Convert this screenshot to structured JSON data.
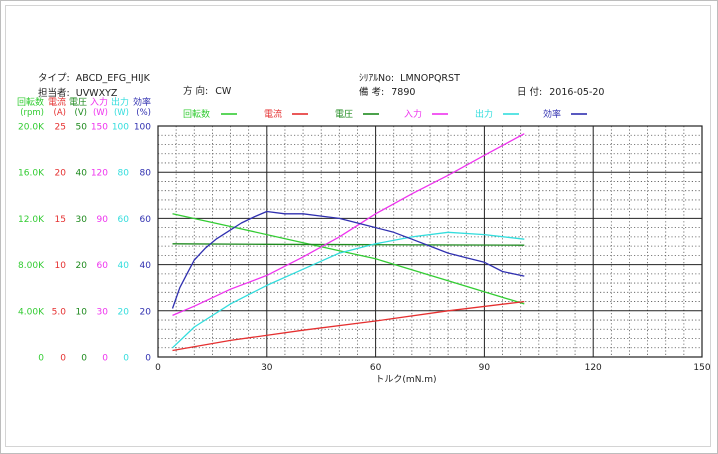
{
  "header": {
    "type_label": "タイプ:",
    "type_value": "ABCD_EFG_HIJK",
    "person_label": "担当者:",
    "person_value": "UVWXYZ",
    "direction_label": "方 向:",
    "direction_value": "CW",
    "serial_label": "ｼﾘｱﾙNo:",
    "serial_value": "LMNOPQRST",
    "remark_label": "備 考:",
    "remark_value": "7890",
    "date_label": "日 付:",
    "date_value": "2016-05-20"
  },
  "chart_data": {
    "type": "line",
    "xlabel": "トルク(mN.m)",
    "xlim": [
      0,
      150
    ],
    "x_ticks": [
      "0",
      "30",
      "60",
      "90",
      "120",
      "150"
    ],
    "grid": true,
    "axes": [
      {
        "name": "回転数",
        "unit": "(rpm)",
        "color": "#33cc33",
        "ticks": [
          "0",
          "4.00K",
          "8.00K",
          "12.0K",
          "16.0K",
          "20.0K"
        ]
      },
      {
        "name": "電流",
        "unit": "(A)",
        "color": "#e53030",
        "ticks": [
          "0",
          "5.0",
          "10",
          "15",
          "20",
          "25"
        ]
      },
      {
        "name": "電圧",
        "unit": "(V)",
        "color": "#1e8a1e",
        "ticks": [
          "0",
          "10",
          "20",
          "30",
          "40",
          "50"
        ]
      },
      {
        "name": "入力",
        "unit": "(W)",
        "color": "#ee33ee",
        "ticks": [
          "0",
          "30",
          "60",
          "90",
          "120",
          "150"
        ]
      },
      {
        "name": "出力",
        "unit": "(W)",
        "color": "#33dddd",
        "ticks": [
          "0",
          "20",
          "40",
          "60",
          "80",
          "100"
        ]
      },
      {
        "name": "効率",
        "unit": "(%)",
        "color": "#3030b0",
        "ticks": [
          "0",
          "20",
          "40",
          "60",
          "80",
          "100"
        ]
      }
    ],
    "legend": [
      {
        "name": "回転数",
        "color": "#33cc33"
      },
      {
        "name": "電流",
        "color": "#e53030"
      },
      {
        "name": "電圧",
        "color": "#1e8a1e"
      },
      {
        "name": "入力",
        "color": "#ee33ee"
      },
      {
        "name": "出力",
        "color": "#33dddd"
      },
      {
        "name": "効率",
        "color": "#3030b0"
      }
    ],
    "series": [
      {
        "name": "回転数",
        "color": "#33cc33",
        "scale_max": 20000,
        "points": [
          [
            4,
            12400
          ],
          [
            20,
            11300
          ],
          [
            40,
            9900
          ],
          [
            60,
            8500
          ],
          [
            80,
            6600
          ],
          [
            101,
            4600
          ]
        ]
      },
      {
        "name": "電流",
        "color": "#e53030",
        "scale_max": 25,
        "points": [
          [
            4,
            0.7
          ],
          [
            20,
            1.8
          ],
          [
            40,
            2.9
          ],
          [
            60,
            3.9
          ],
          [
            80,
            5.0
          ],
          [
            101,
            6.0
          ]
        ]
      },
      {
        "name": "電圧",
        "color": "#1e8a1e",
        "scale_max": 50,
        "points": [
          [
            4,
            24.5
          ],
          [
            30,
            24.4
          ],
          [
            60,
            24.3
          ],
          [
            101,
            24.2
          ]
        ]
      },
      {
        "name": "入力",
        "color": "#ee33ee",
        "scale_max": 150,
        "points": [
          [
            4,
            27
          ],
          [
            10,
            33
          ],
          [
            20,
            44
          ],
          [
            30,
            53
          ],
          [
            40,
            65
          ],
          [
            50,
            78
          ],
          [
            60,
            93
          ],
          [
            70,
            106
          ],
          [
            80,
            118
          ],
          [
            90,
            131
          ],
          [
            101,
            145
          ]
        ]
      },
      {
        "name": "出力",
        "color": "#33dddd",
        "scale_max": 100,
        "points": [
          [
            4,
            4
          ],
          [
            10,
            13
          ],
          [
            20,
            23
          ],
          [
            30,
            31
          ],
          [
            40,
            38
          ],
          [
            50,
            45
          ],
          [
            60,
            49
          ],
          [
            70,
            52
          ],
          [
            80,
            54
          ],
          [
            90,
            53
          ],
          [
            101,
            51
          ]
        ]
      },
      {
        "name": "効率",
        "color": "#3030b0",
        "scale_max": 100,
        "points": [
          [
            4,
            21
          ],
          [
            6,
            30
          ],
          [
            8,
            36
          ],
          [
            10,
            42
          ],
          [
            13,
            47
          ],
          [
            16,
            51
          ],
          [
            20,
            55
          ],
          [
            23,
            58
          ],
          [
            27,
            61
          ],
          [
            30,
            63
          ],
          [
            35,
            62
          ],
          [
            40,
            62
          ],
          [
            45,
            61
          ],
          [
            50,
            60
          ],
          [
            55,
            58
          ],
          [
            60,
            56
          ],
          [
            65,
            54
          ],
          [
            70,
            51
          ],
          [
            75,
            48
          ],
          [
            80,
            45
          ],
          [
            85,
            43
          ],
          [
            90,
            41
          ],
          [
            95,
            37
          ],
          [
            101,
            35
          ]
        ]
      }
    ]
  }
}
